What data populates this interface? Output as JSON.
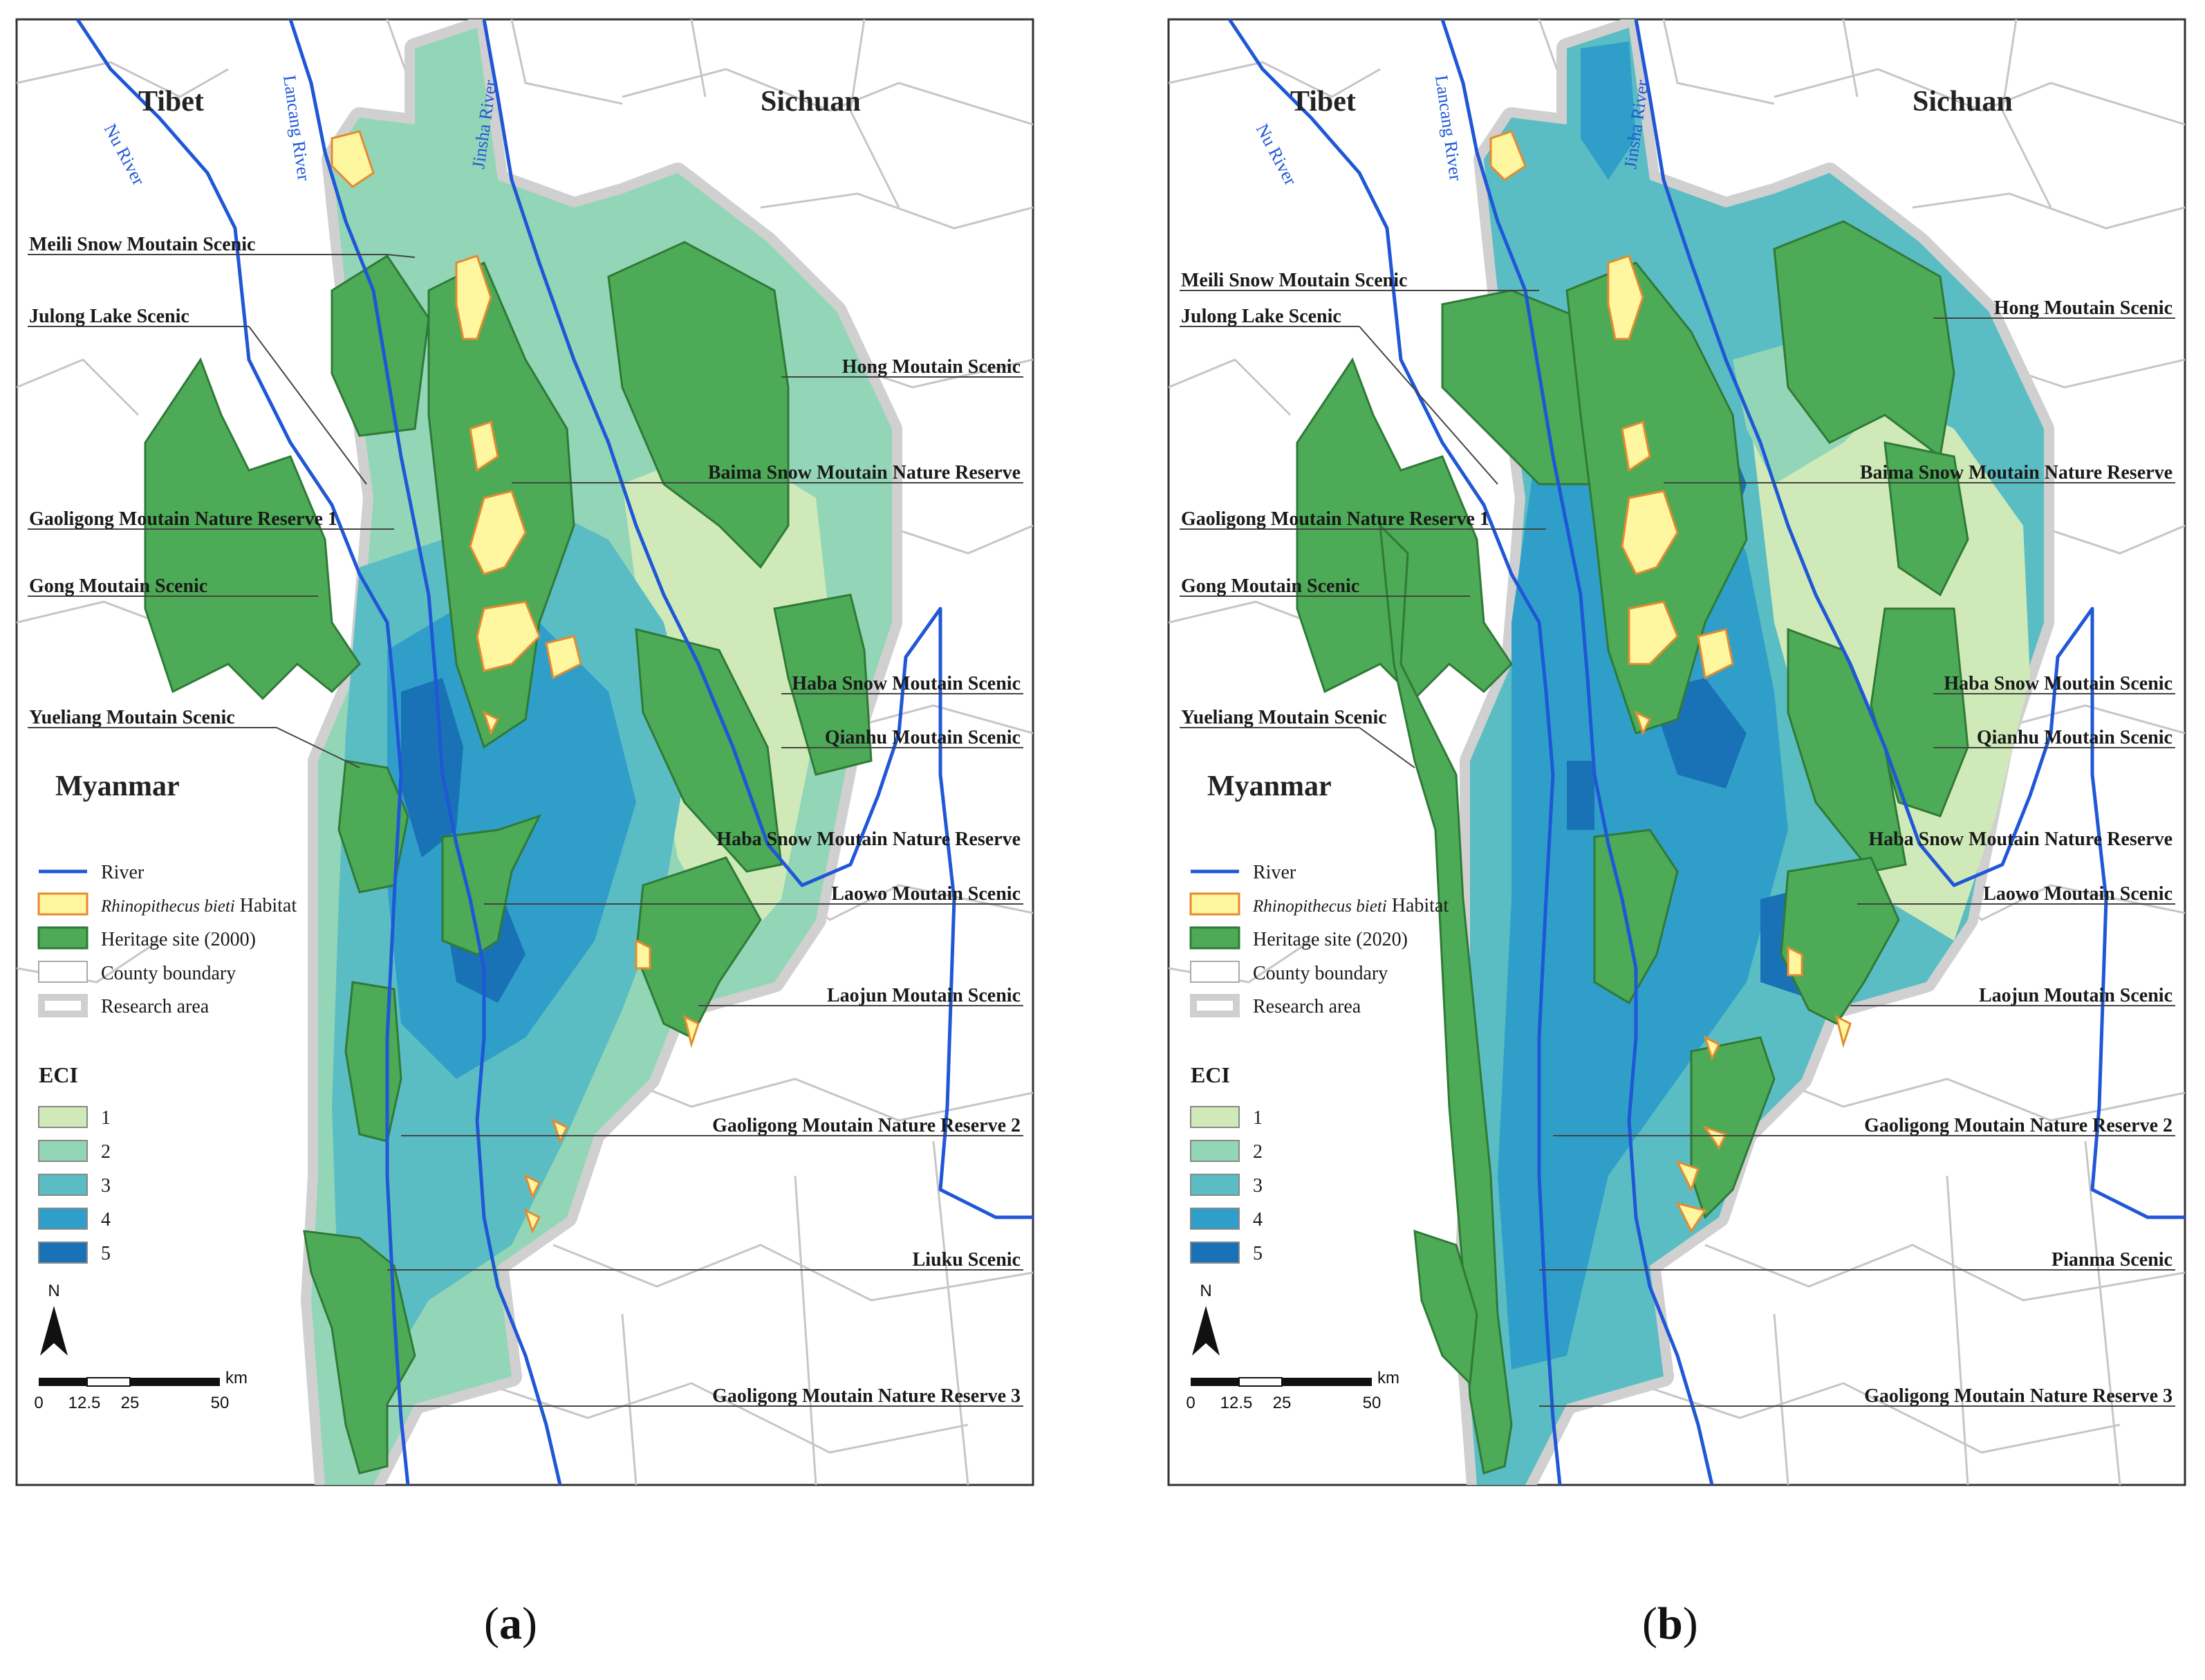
{
  "colors": {
    "river": "#1f57d6",
    "heritage": "#4daa57",
    "heritage_edge": "#2f7a37",
    "habitat_fill": "#fff7a0",
    "habitat_edge": "#e48a30",
    "boundary": "#c8c8c8",
    "research": "#cfcfcf",
    "eci": [
      "#cfeab8",
      "#93d6b7",
      "#5bbdc4",
      "#2f9fc9",
      "#1a72b6"
    ]
  },
  "maps": [
    {
      "id": "a",
      "caption": "a",
      "regions": {
        "tibet": "Tibet",
        "sichuan": "Sichuan",
        "myanmar": "Myanmar"
      },
      "rivers": {
        "nu": "Nu River",
        "lancang": "Lancang River",
        "jinsha": "Jinsha River"
      },
      "left_callouts": [
        "Meili Snow Moutain Scenic",
        "Julong Lake Scenic",
        "Gaoligong Moutain Nature Reserve 1",
        "Gong Moutain Scenic",
        "Yueliang Moutain Scenic"
      ],
      "right_callouts": [
        "Hong Moutain Scenic",
        "Baima Snow Moutain Nature Reserve",
        "Haba Snow Moutain Scenic",
        "Qianhu Moutain Scenic",
        "Haba Snow Moutain Nature Reserve",
        "Laowo Moutain Scenic",
        "Laojun Moutain Scenic",
        "Gaoligong Moutain Nature Reserve 2",
        "Liuku Scenic",
        "Gaoligong Moutain Nature Reserve 3"
      ],
      "legend": {
        "river": "River",
        "habitat_italic": "Rhinopithecus bieti",
        "habitat_rest": " Habitat",
        "heritage": "Heritage site (2000)",
        "county": "County boundary",
        "research": "Research area"
      }
    },
    {
      "id": "b",
      "caption": "b",
      "regions": {
        "tibet": "Tibet",
        "sichuan": "Sichuan",
        "myanmar": "Myanmar"
      },
      "rivers": {
        "nu": "Nu River",
        "lancang": "Lancang River",
        "jinsha": "Jinsha River"
      },
      "left_callouts": [
        "Meili Snow Moutain Scenic",
        "Julong Lake Scenic",
        "Gaoligong Moutain Nature Reserve 1",
        "Gong Moutain Scenic",
        "Yueliang Moutain Scenic"
      ],
      "right_callouts": [
        "Hong Moutain Scenic",
        "Baima Snow Moutain Nature Reserve",
        "Haba Snow Moutain Scenic",
        "Qianhu Moutain Scenic",
        "Haba Snow Moutain Nature Reserve",
        "Laowo Moutain Scenic",
        "Laojun Moutain Scenic",
        "Gaoligong Moutain Nature Reserve 2",
        "Pianma Scenic",
        "Gaoligong Moutain Nature Reserve 3"
      ],
      "legend": {
        "river": "River",
        "habitat_italic": "Rhinopithecus bieti",
        "habitat_rest": " Habitat",
        "heritage": "Heritage site (2020)",
        "county": "County boundary",
        "research": "Research area"
      }
    }
  ],
  "eci": {
    "title": "ECI",
    "classes": [
      "1",
      "2",
      "3",
      "4",
      "5"
    ]
  },
  "scalebar": {
    "unit": "km",
    "ticks": [
      "0",
      "12.5",
      "25",
      "50"
    ]
  },
  "north": "N"
}
